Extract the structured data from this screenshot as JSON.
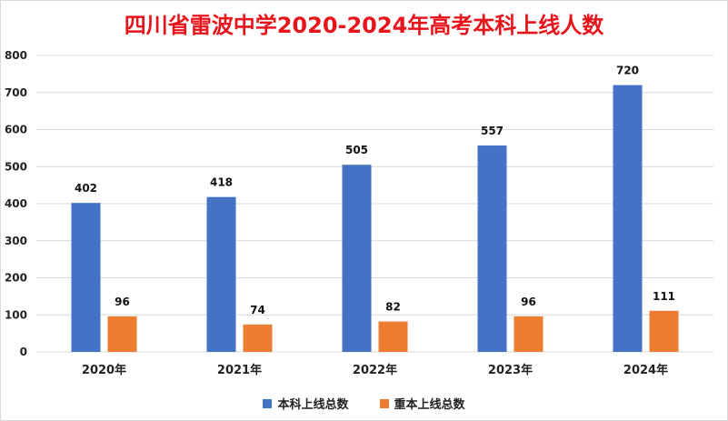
{
  "chart_data": {
    "type": "bar",
    "title": "四川省雷波中学2020-2024年高考本科上线人数",
    "categories": [
      "2020年",
      "2021年",
      "2022年",
      "2023年",
      "2024年"
    ],
    "series": [
      {
        "name": "本科上线总数",
        "color": "#4472c4",
        "values": [
          402,
          418,
          505,
          557,
          720
        ]
      },
      {
        "name": "重本上线总数",
        "color": "#ed7d31",
        "values": [
          96,
          74,
          82,
          96,
          111
        ]
      }
    ],
    "ylim": [
      0,
      800
    ],
    "yticks": [
      "0",
      "100",
      "200",
      "300",
      "400",
      "500",
      "600",
      "700",
      "800"
    ],
    "grid": true,
    "legend": "bottom",
    "title_color": "#e8141c"
  }
}
